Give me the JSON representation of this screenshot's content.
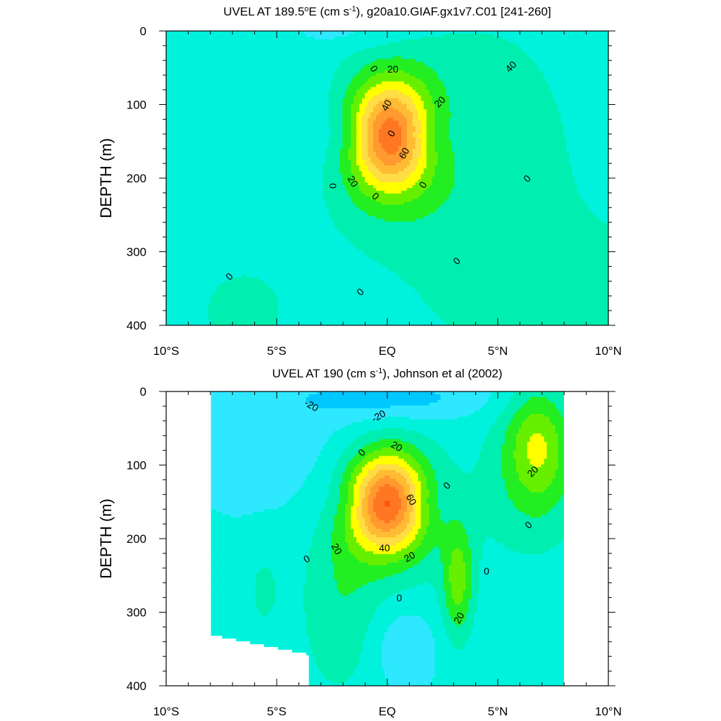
{
  "figure": {
    "panels": [
      {
        "title_main": "UVEL AT 189.5",
        "title_deg": "o",
        "title_after": "E (cm s",
        "title_sup": "-1",
        "title_end": "), g20a10.GIAF.gx1v7.C01 [241-260]"
      },
      {
        "title_main": "UVEL AT 190 (cm s",
        "title_sup": "-1",
        "title_end": "), Johnson et al (2002)"
      }
    ]
  },
  "chart_data": [
    {
      "type": "contour",
      "title": "UVEL AT 189.5°E (cm s-1), g20a10.GIAF.gx1v7.C01 [241-260]",
      "variable": "UVEL",
      "units": "cm s-1",
      "ylabel": "DEPTH (m)",
      "xlabel": "",
      "xlim": [
        -10,
        10
      ],
      "ylim": [
        400,
        0
      ],
      "x_ticks": [
        -10,
        -5,
        0,
        5,
        10
      ],
      "x_tick_labels": [
        "10°S",
        "5°S",
        "EQ",
        "5°N",
        "10°N"
      ],
      "y_ticks": [
        0,
        100,
        200,
        300,
        400
      ],
      "contour_interval": 10,
      "contour_labels": [
        "0",
        "20",
        "40",
        "60",
        "20",
        "0",
        "0",
        "0",
        "20",
        "40",
        "0",
        "0",
        "0",
        "0",
        "0"
      ],
      "core": {
        "lat": 0.1,
        "depth": 140,
        "max": 70
      },
      "colors": [
        "#00c8ff",
        "#2ee8ff",
        "#00f2dd",
        "#00efb0",
        "#22ee22",
        "#66f000",
        "#ffff00",
        "#ffdd44",
        "#ffbb33",
        "#ff9930",
        "#ff7722",
        "#ff5511",
        "#ee1111"
      ]
    },
    {
      "type": "contour",
      "title": "UVEL AT 190 (cm s-1), Johnson et al (2002)",
      "variable": "UVEL",
      "units": "cm s-1",
      "ylabel": "DEPTH (m)",
      "xlabel": "",
      "xlim": [
        -10,
        10
      ],
      "ylim": [
        400,
        0
      ],
      "data_lat_range": [
        -8,
        8
      ],
      "x_ticks": [
        -10,
        -5,
        0,
        5,
        10
      ],
      "x_tick_labels": [
        "10°S",
        "5°S",
        "EQ",
        "5°N",
        "10°N"
      ],
      "y_ticks": [
        0,
        100,
        200,
        300,
        400
      ],
      "contour_interval": 10,
      "contour_labels": [
        "-20",
        "-20",
        "20",
        "0",
        "0",
        "20",
        "40",
        "60",
        "20",
        "0",
        "0",
        "20",
        "0",
        "20",
        "0"
      ],
      "core": {
        "lat": 0.0,
        "depth": 148,
        "max": 70
      },
      "colors": [
        "#00c8ff",
        "#2ee8ff",
        "#00f2dd",
        "#00efb0",
        "#22ee22",
        "#66f000",
        "#ffff00",
        "#ffdd44",
        "#ffbb33",
        "#ff9930",
        "#ff7722",
        "#ff5511",
        "#ee1111"
      ]
    }
  ]
}
